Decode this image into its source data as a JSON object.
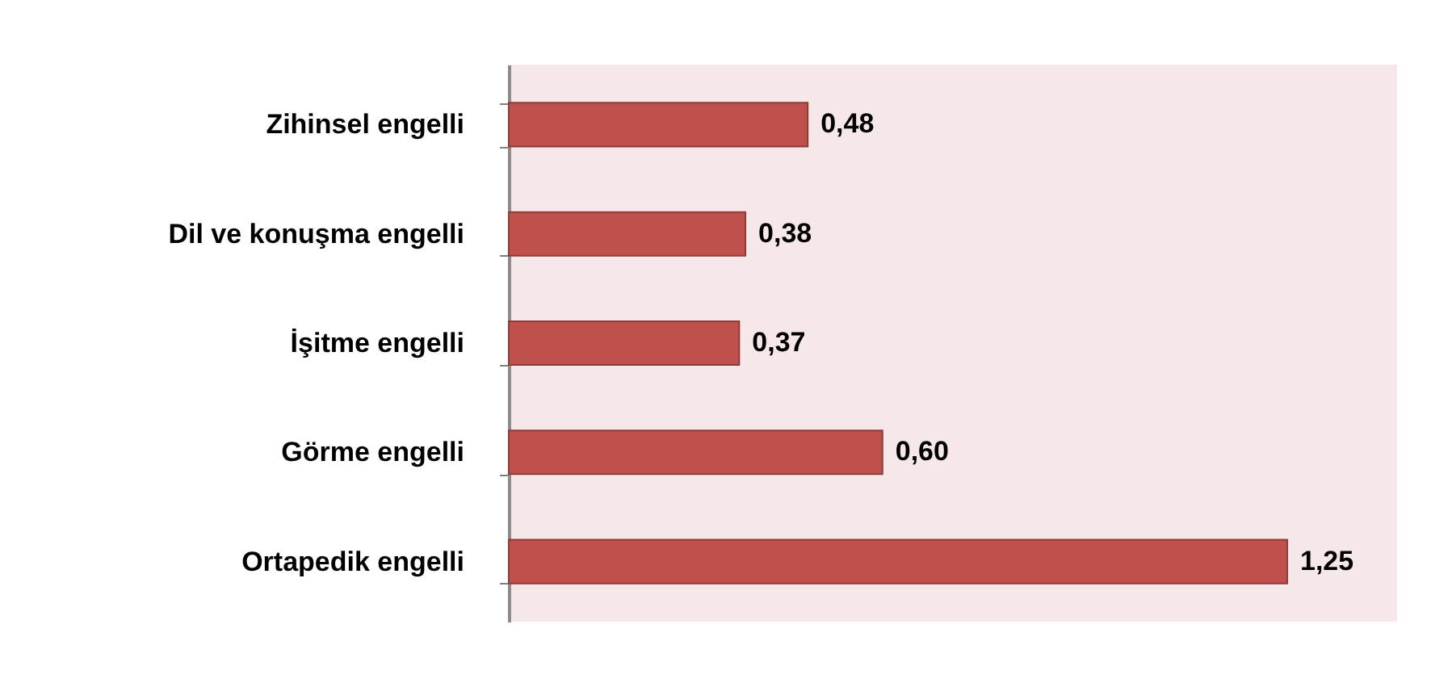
{
  "chart_data": {
    "type": "bar",
    "orientation": "horizontal",
    "categories": [
      "Zihinsel engelli",
      "Dil ve konuşma engelli",
      "İşitme engelli",
      "Görme engelli",
      "Ortapedik engelli"
    ],
    "values": [
      0.48,
      0.38,
      0.37,
      0.6,
      1.25
    ],
    "value_labels": [
      "0,48",
      "0,38",
      "0,37",
      "0,60",
      "1,25"
    ],
    "color": "#c0504d"
  }
}
